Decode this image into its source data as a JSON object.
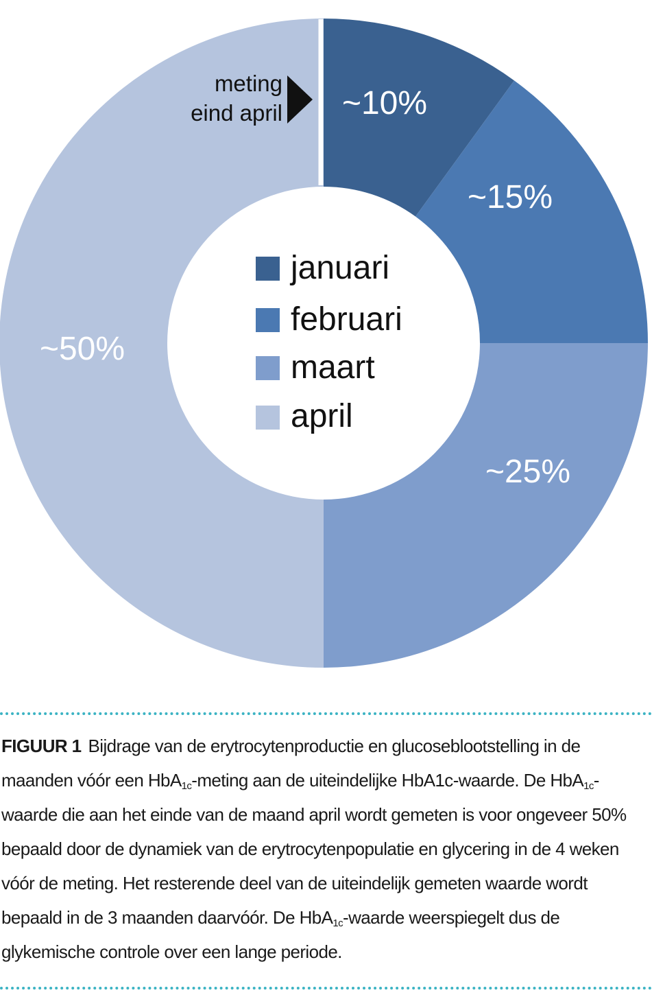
{
  "chart_data": {
    "type": "pie",
    "title": "",
    "categories": [
      "januari",
      "februari",
      "maart",
      "april"
    ],
    "values": [
      10,
      15,
      25,
      50
    ],
    "labels": [
      "~10%",
      "~15%",
      "~25%",
      "~50%"
    ],
    "colors": [
      "#3a6190",
      "#4b79b2",
      "#7f9dcc",
      "#b5c4de"
    ],
    "legend_position": "center",
    "annotation": [
      "meting",
      "eind april"
    ]
  },
  "caption": {
    "figure_label": "FIGUUR 1",
    "p1": "Bijdrage van de erytrocytenproductie en glucoseblootstelling in de maanden vóór een HbA",
    "sub1": "1c",
    "p2": "-meting aan de uiteindelijke HbA1c-waarde. De HbA",
    "sub2": "1c",
    "p3": "-waarde die aan het einde van de maand april wordt gemeten is voor ongeveer 50% bepaald door de dynamiek van de erytrocytenpopulatie en glycering in de 4 weken vóór de meting. Het resterende deel van de uiteindelijk gemeten waarde wordt bepaald in de 3 maanden daarvóór. De HbA",
    "sub3": "1c",
    "p4": "-waarde weerspiegelt dus de glykemische controle over een lange periode."
  }
}
